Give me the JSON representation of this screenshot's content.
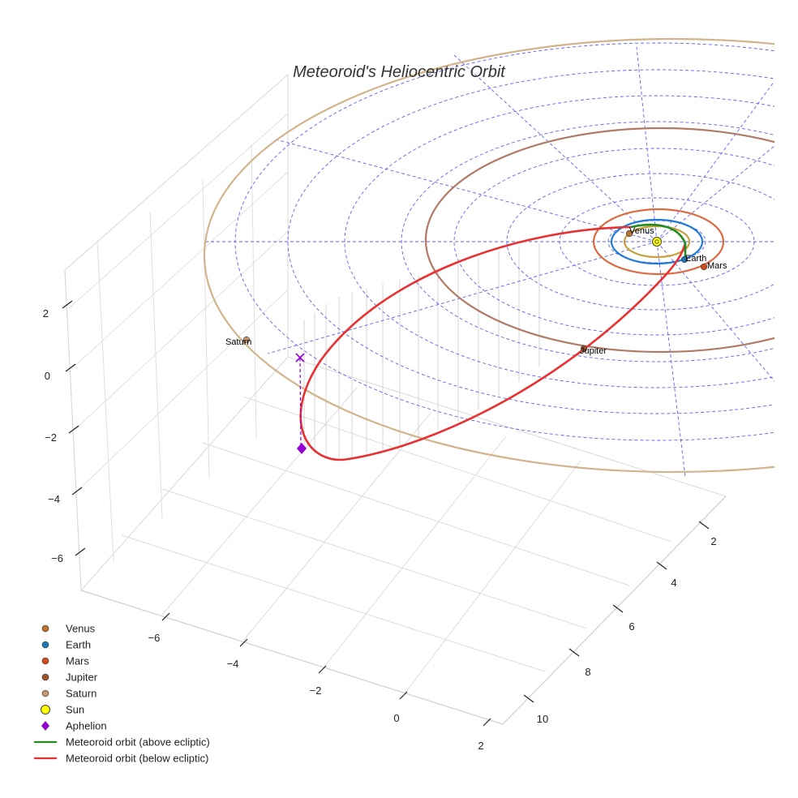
{
  "chart_data": {
    "type": "scatter3d",
    "title": "Meteoroid's Heliocentric Orbit",
    "axes": {
      "x": {
        "ticks": [
          "−6",
          "−4",
          "−2",
          "0",
          "2"
        ]
      },
      "y": {
        "ticks": [
          "2",
          "4",
          "6",
          "8",
          "10"
        ]
      },
      "z": {
        "ticks": [
          "2",
          "0",
          "−2",
          "−4",
          "−6"
        ]
      }
    },
    "planets": [
      {
        "name": "Venus",
        "color": "#b87333",
        "orbit_color": "#c8a038"
      },
      {
        "name": "Earth",
        "color": "#1f77b4",
        "orbit_color": "#1f7ad8"
      },
      {
        "name": "Mars",
        "color": "#d04a1c",
        "orbit_color": "#dd6a40"
      },
      {
        "name": "Jupiter",
        "color": "#a0522d",
        "orbit_color": "#b07a66"
      },
      {
        "name": "Saturn",
        "color": "#c9956b",
        "orbit_color": "#d2b48c"
      }
    ],
    "sun": {
      "name": "Sun",
      "color": "#ffff00"
    },
    "aphelion": {
      "name": "Aphelion",
      "color": "#9400d3"
    },
    "series": [
      {
        "name": "Meteoroid orbit (above ecliptic)",
        "color": "#228b22"
      },
      {
        "name": "Meteoroid orbit (below ecliptic)",
        "color": "#e83030"
      }
    ],
    "legend": [
      {
        "label": "Venus",
        "kind": "dot",
        "color": "#b87333"
      },
      {
        "label": "Earth",
        "kind": "dot",
        "color": "#1f77b4"
      },
      {
        "label": "Mars",
        "kind": "dot",
        "color": "#d04a1c"
      },
      {
        "label": "Jupiter",
        "kind": "dot",
        "color": "#a0522d"
      },
      {
        "label": "Saturn",
        "kind": "dot",
        "color": "#c9956b"
      },
      {
        "label": "Sun",
        "kind": "sun",
        "color": "#ffff00"
      },
      {
        "label": "Aphelion",
        "kind": "diamond",
        "color": "#9400d3"
      },
      {
        "label": "Meteoroid orbit (above ecliptic)",
        "kind": "line",
        "color": "#228b22"
      },
      {
        "label": "Meteoroid orbit (below ecliptic)",
        "kind": "line",
        "color": "#e83030"
      }
    ],
    "legend_position": "lower-left"
  }
}
